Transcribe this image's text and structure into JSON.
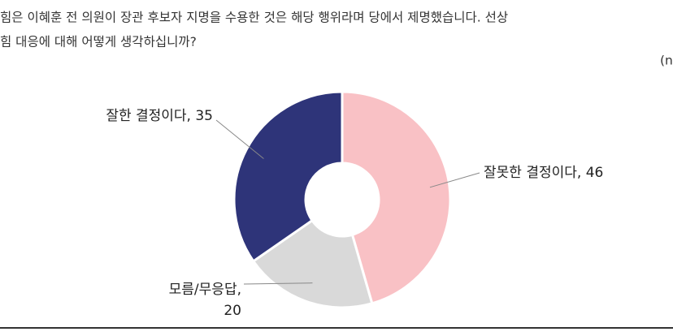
{
  "question": [
    "힘은 이혜훈 전 의원이 장관 후보자 지명을 수용한 것은 해당 행위라며 당에서 제명했습니다. 선상",
    "힘 대응에 대해 어떻게 생각하십니까?"
  ],
  "note": "(n",
  "chart_data": {
    "type": "donut",
    "categories": [
      "잘못한 결정이다",
      "모름/무응답",
      "잘한 결정이다"
    ],
    "values": [
      46,
      20,
      35
    ],
    "colors": [
      "#f9c1c5",
      "#d9d9d9",
      "#2e3479"
    ],
    "labels": [
      [
        "잘못한 결정이다, 46"
      ],
      [
        "모름/무응답,",
        "20"
      ],
      [
        "잘한 결정이다, 35"
      ]
    ]
  }
}
